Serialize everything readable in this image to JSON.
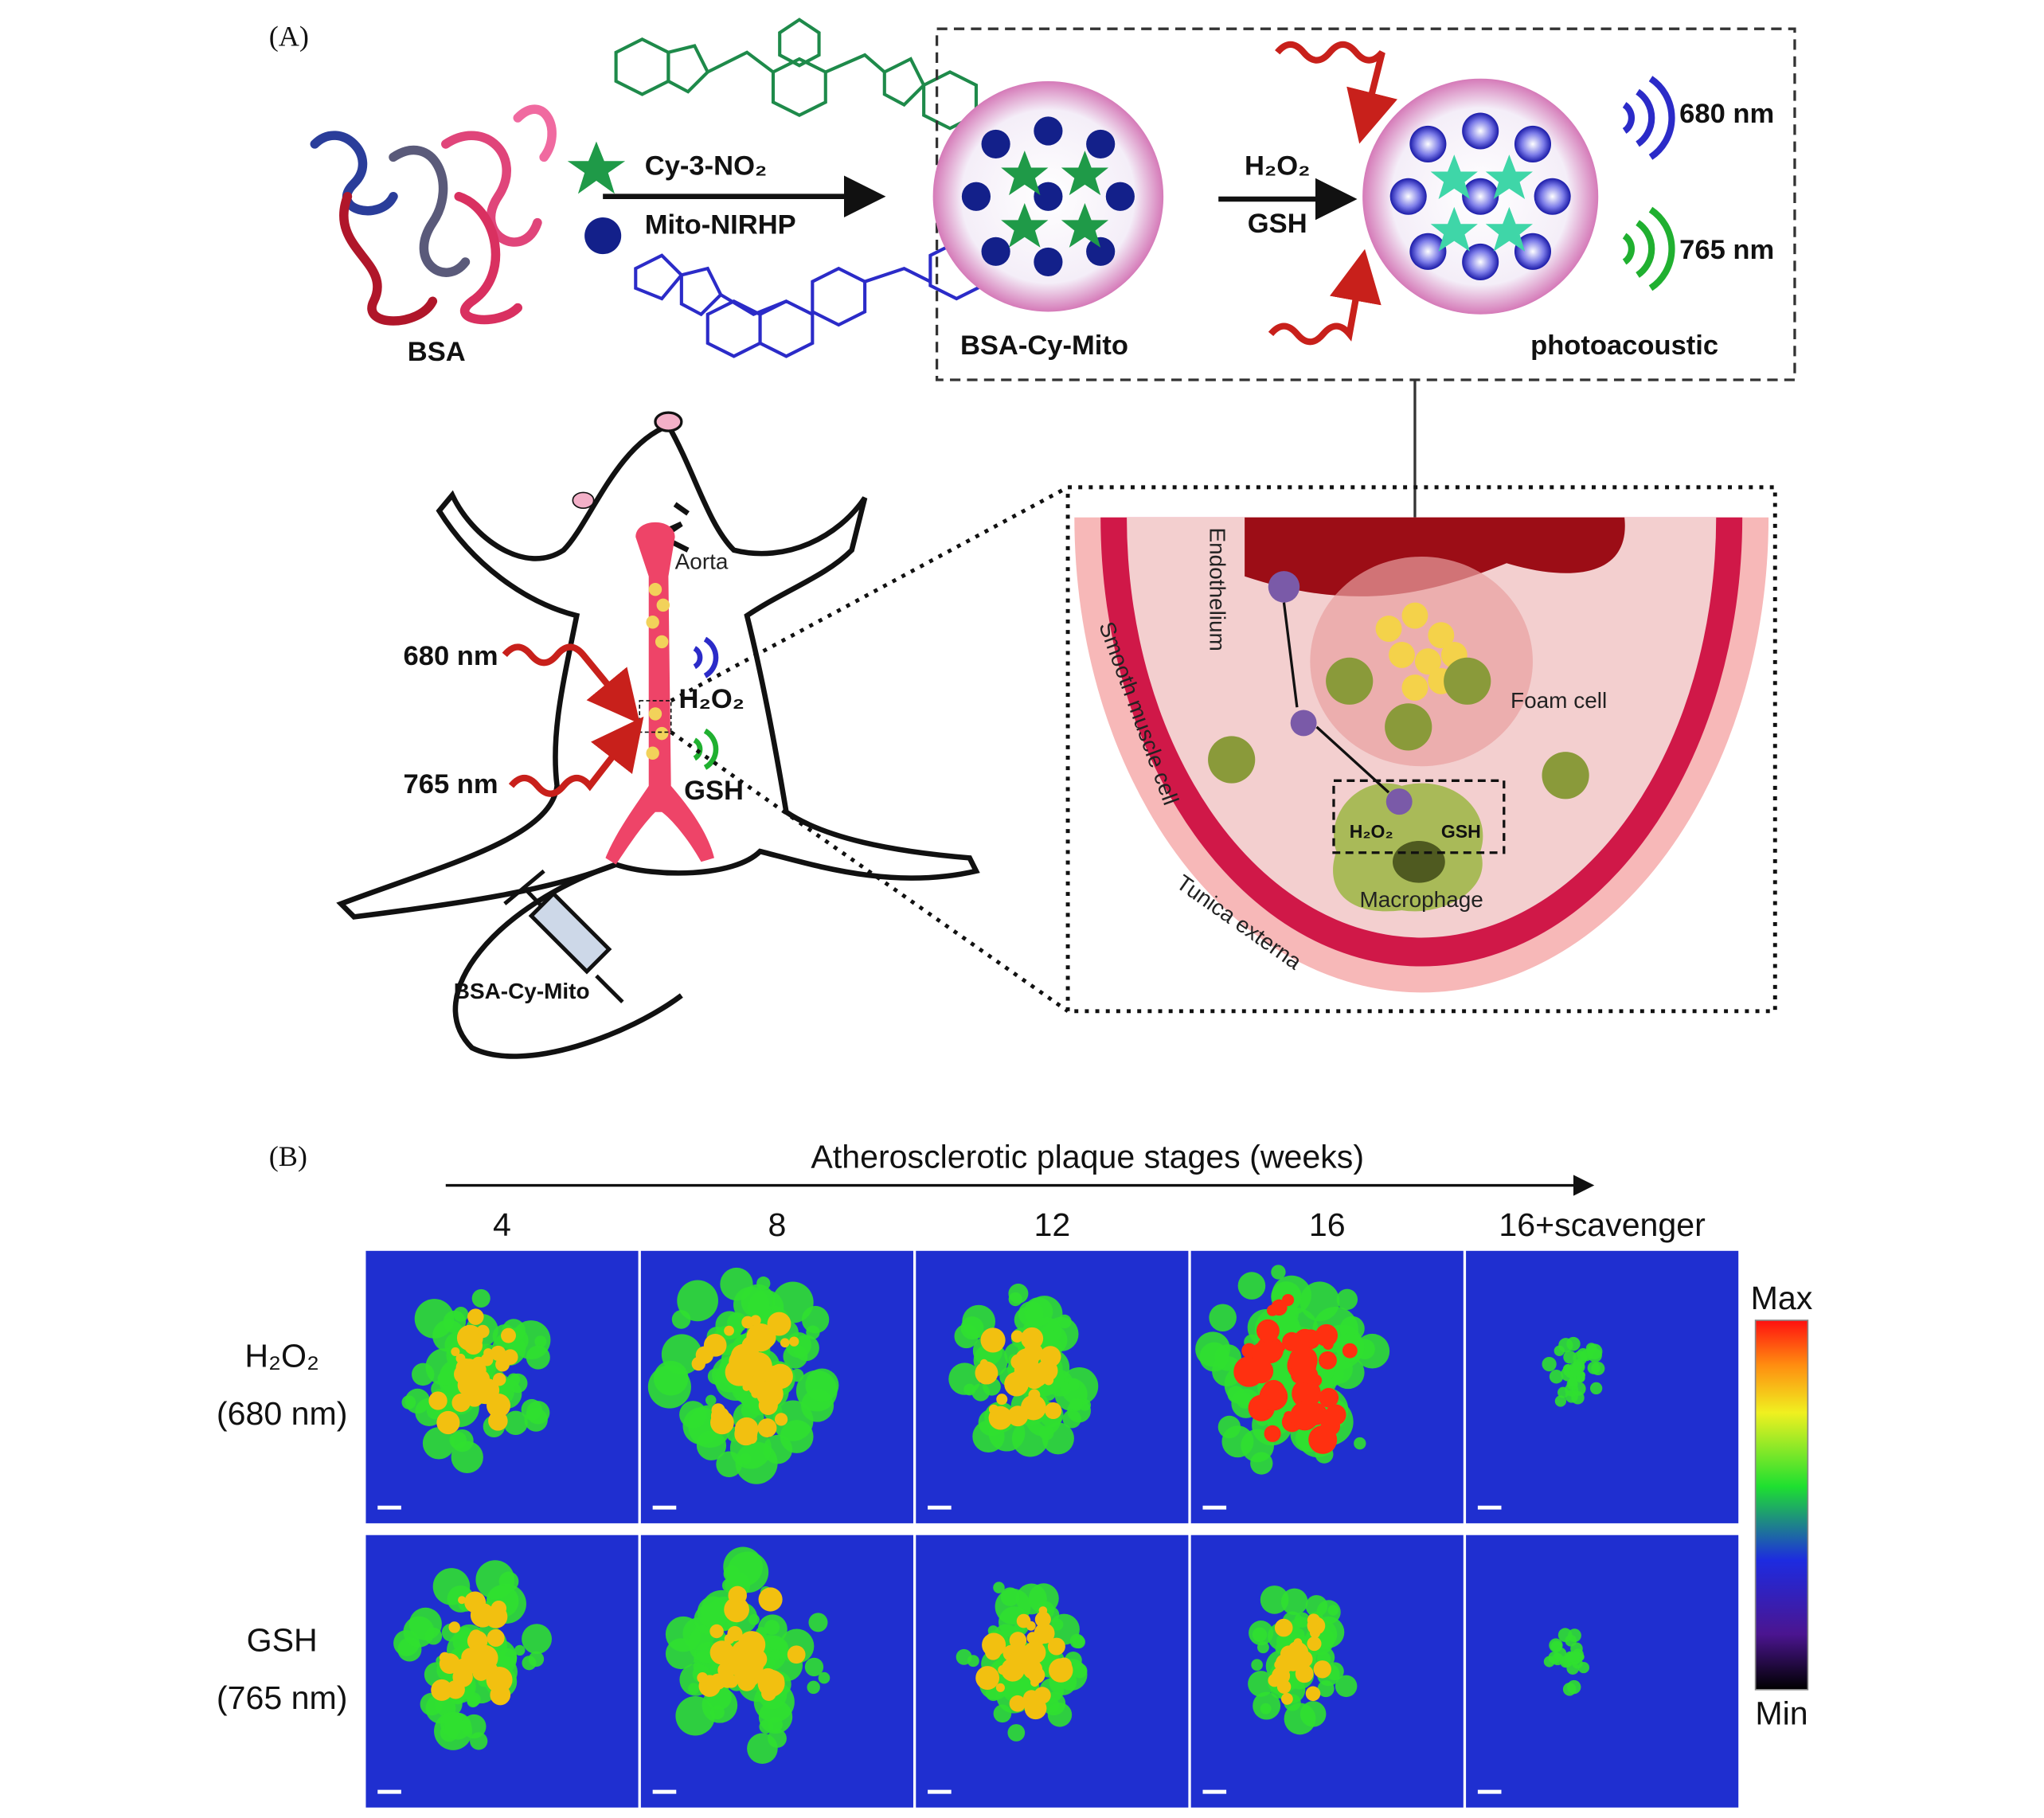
{
  "panel_a": {
    "label": "(A)",
    "synthesis": {
      "protein": "BSA",
      "dye_1": "Cy-3-NO₂",
      "dye_2": "Mito-NIRHP",
      "nanoprobe": "BSA-Cy-Mito",
      "trigger_1": "H₂O₂",
      "trigger_2": "GSH",
      "signal_1": "680 nm",
      "signal_2": "765 nm",
      "readout": "photoacoustic"
    },
    "mouse": {
      "vessel": "Aorta",
      "laser_1": "680 nm",
      "laser_2": "765 nm",
      "analyte_1": "H₂O₂",
      "analyte_2": "GSH",
      "injection": "BSA-Cy-Mito"
    },
    "vessel_section": {
      "layer_1": "Endothelium",
      "layer_2": "Smooth muscle cell",
      "layer_3": "Tunica externa",
      "cell_1": "Foam cell",
      "cell_2": "Macrophage",
      "analyte_1": "H₂O₂",
      "analyte_2": "GSH"
    }
  },
  "panel_b": {
    "label": "(B)",
    "axis_title": "Atherosclerotic plaque stages (weeks)",
    "columns": [
      "4",
      "8",
      "12",
      "16",
      "16+scavenger"
    ],
    "rows": [
      {
        "analyte": "H₂O₂",
        "wavelength": "(680 nm)"
      },
      {
        "analyte": "GSH",
        "wavelength": "(765 nm)"
      }
    ],
    "colorbar": {
      "max": "Max",
      "min": "Min"
    }
  }
}
